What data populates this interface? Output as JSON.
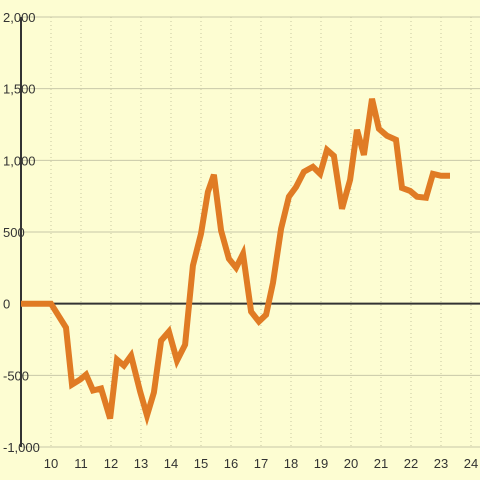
{
  "chart_data": {
    "type": "line",
    "x": [
      9.0,
      10,
      10.5,
      10.7,
      10.97,
      11.17,
      11.4,
      11.67,
      11.97,
      12.2,
      12.43,
      12.67,
      12.97,
      13.2,
      13.43,
      13.67,
      13.93,
      14.2,
      14.47,
      14.73,
      15.0,
      15.23,
      15.43,
      15.67,
      15.93,
      16.17,
      16.4,
      16.67,
      16.93,
      17.17,
      17.4,
      17.67,
      17.93,
      18.17,
      18.43,
      18.73,
      18.97,
      19.2,
      19.43,
      19.7,
      19.97,
      20.2,
      20.43,
      20.7,
      20.93,
      21.2,
      21.5,
      21.7,
      21.97,
      22.2,
      22.5,
      22.73,
      23.0,
      23.3
    ],
    "values": [
      0,
      0,
      -167,
      -565,
      -530,
      -495,
      -606,
      -592,
      -801,
      -390,
      -432,
      -362,
      -613,
      -780,
      -620,
      -258,
      -195,
      -397,
      -286,
      265,
      488,
      780,
      899,
      509,
      314,
      251,
      348,
      -56,
      -125,
      -77,
      146,
      523,
      746,
      815,
      920,
      955,
      906,
      1073,
      1031,
      662,
      864,
      1213,
      1038,
      1429,
      1220,
      1171,
      1143,
      808,
      787,
      746,
      739,
      906,
      892,
      892
    ],
    "color": "#e07b24",
    "xlim": [
      9.0,
      24.3
    ],
    "xticks": [
      10,
      11,
      12,
      13,
      14,
      15,
      16,
      17,
      18,
      19,
      20,
      21,
      22,
      23,
      24
    ],
    "ylim": [
      -1000,
      2000
    ],
    "yticks": [
      {
        "value": -1000,
        "label": "-1,000"
      },
      -500,
      0,
      500,
      {
        "value": 1000,
        "label": "1,000"
      },
      {
        "value": 1500,
        "label": "1,500"
      },
      {
        "value": 2000,
        "label": "2,000"
      }
    ],
    "grid": true
  }
}
